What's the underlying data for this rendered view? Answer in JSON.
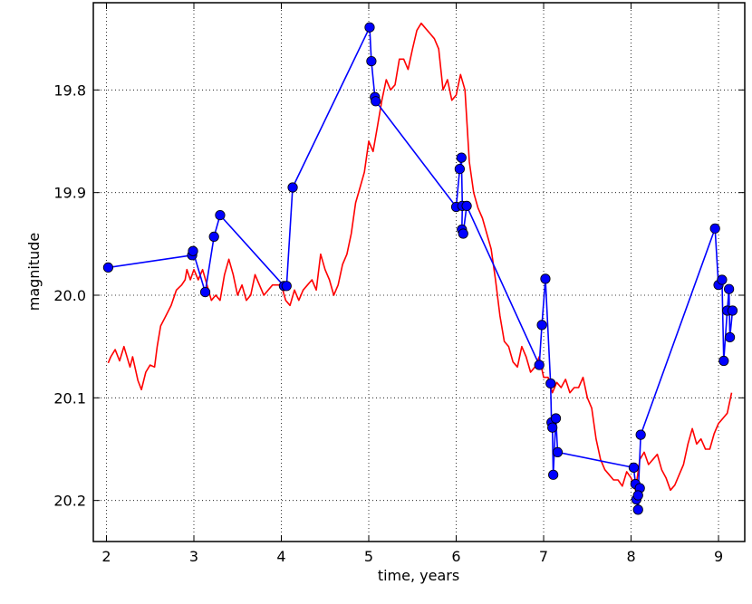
{
  "chart_data": {
    "type": "line",
    "xlabel": "time, years",
    "ylabel": "magnitude",
    "xlim": [
      1.85,
      9.3
    ],
    "ylim": [
      20.24,
      19.715
    ],
    "y_inverted": true,
    "grid": true,
    "grid_style": "dotted",
    "x_ticks": [
      2,
      3,
      4,
      5,
      6,
      7,
      8,
      9
    ],
    "x_tick_labels": [
      "2",
      "3",
      "4",
      "5",
      "6",
      "7",
      "8",
      "9"
    ],
    "y_ticks": [
      19.8,
      19.9,
      20.0,
      20.1,
      20.2
    ],
    "y_tick_labels": [
      "19.8",
      "19.9",
      "20.0",
      "20.1",
      "20.2"
    ],
    "series": [
      {
        "color": "#ff0000",
        "marker": "none",
        "x": [
          2.02,
          2.05,
          2.1,
          2.15,
          2.2,
          2.27,
          2.3,
          2.36,
          2.4,
          2.45,
          2.5,
          2.55,
          2.58,
          2.62,
          2.68,
          2.74,
          2.8,
          2.86,
          2.9,
          2.92,
          2.96,
          3.0,
          3.05,
          3.1,
          3.15,
          3.2,
          3.25,
          3.3,
          3.35,
          3.4,
          3.45,
          3.5,
          3.55,
          3.6,
          3.65,
          3.7,
          3.8,
          3.9,
          4.0,
          4.05,
          4.1,
          4.15,
          4.2,
          4.25,
          4.3,
          4.35,
          4.4,
          4.45,
          4.5,
          4.55,
          4.6,
          4.65,
          4.7,
          4.75,
          4.8,
          4.85,
          4.9,
          4.95,
          5.0,
          5.05,
          5.1,
          5.15,
          5.2,
          5.25,
          5.3,
          5.35,
          5.4,
          5.45,
          5.5,
          5.55,
          5.6,
          5.65,
          5.7,
          5.75,
          5.8,
          5.85,
          5.9,
          5.95,
          6.0,
          6.05,
          6.1,
          6.15,
          6.2,
          6.25,
          6.3,
          6.35,
          6.4,
          6.45,
          6.5,
          6.55,
          6.6,
          6.65,
          6.7,
          6.75,
          6.8,
          6.85,
          6.9,
          6.95,
          7.0,
          7.05,
          7.1,
          7.15,
          7.2,
          7.25,
          7.3,
          7.35,
          7.4,
          7.45,
          7.5,
          7.55,
          7.6,
          7.65,
          7.7,
          7.75,
          7.8,
          7.85,
          7.9,
          7.95,
          8.0,
          8.05,
          8.1,
          8.15,
          8.2,
          8.25,
          8.3,
          8.35,
          8.4,
          8.45,
          8.5,
          8.55,
          8.6,
          8.65,
          8.7,
          8.75,
          8.8,
          8.85,
          8.9,
          8.95,
          9.0,
          9.05,
          9.1,
          9.15
        ],
        "y": [
          20.066,
          20.06,
          20.053,
          20.064,
          20.05,
          20.07,
          20.06,
          20.083,
          20.092,
          20.075,
          20.068,
          20.07,
          20.05,
          20.03,
          20.02,
          20.01,
          19.995,
          19.99,
          19.985,
          19.975,
          19.985,
          19.975,
          19.985,
          19.975,
          19.99,
          20.005,
          20.0,
          20.005,
          19.98,
          19.965,
          19.98,
          20.0,
          19.99,
          20.005,
          20.0,
          19.98,
          20.0,
          19.99,
          19.99,
          20.005,
          20.01,
          19.995,
          20.005,
          19.995,
          19.99,
          19.985,
          19.995,
          19.96,
          19.975,
          19.985,
          20.0,
          19.99,
          19.97,
          19.96,
          19.94,
          19.91,
          19.895,
          19.88,
          19.85,
          19.86,
          19.835,
          19.81,
          19.79,
          19.8,
          19.795,
          19.77,
          19.77,
          19.78,
          19.76,
          19.742,
          19.735,
          19.74,
          19.745,
          19.75,
          19.76,
          19.8,
          19.79,
          19.81,
          19.805,
          19.785,
          19.8,
          19.87,
          19.9,
          19.915,
          19.925,
          19.94,
          19.955,
          19.985,
          20.02,
          20.045,
          20.05,
          20.065,
          20.07,
          20.05,
          20.06,
          20.075,
          20.07,
          20.06,
          20.08,
          20.08,
          20.095,
          20.085,
          20.09,
          20.082,
          20.095,
          20.09,
          20.09,
          20.08,
          20.1,
          20.11,
          20.14,
          20.16,
          20.17,
          20.175,
          20.18,
          20.18,
          20.186,
          20.172,
          20.178,
          20.19,
          20.16,
          20.153,
          20.165,
          20.16,
          20.155,
          20.17,
          20.178,
          20.19,
          20.185,
          20.175,
          20.165,
          20.145,
          20.13,
          20.145,
          20.14,
          20.15,
          20.15,
          20.135,
          20.125,
          20.12,
          20.115,
          20.095
        ]
      },
      {
        "color": "#0000ff",
        "marker": "circle",
        "x": [
          2.02,
          2.98,
          2.99,
          3.13,
          3.23,
          3.3,
          4.03,
          4.06,
          4.13,
          5.01,
          5.03,
          5.07,
          5.08,
          6.0,
          6.04,
          6.06,
          6.07,
          6.065,
          6.08,
          6.12,
          6.95,
          6.98,
          7.02,
          7.08,
          7.09,
          7.1,
          7.11,
          7.14,
          7.16,
          8.03,
          8.05,
          8.06,
          8.08,
          8.1,
          8.08,
          8.11,
          8.96,
          9.0,
          9.04,
          9.06,
          9.1,
          9.12,
          9.13,
          9.16
        ],
        "y": [
          19.973,
          19.961,
          19.957,
          19.997,
          19.943,
          19.922,
          19.991,
          19.991,
          19.895,
          19.739,
          19.772,
          19.807,
          19.811,
          19.914,
          19.877,
          19.866,
          19.913,
          19.936,
          19.94,
          19.913,
          20.068,
          20.029,
          19.984,
          20.086,
          20.124,
          20.129,
          20.175,
          20.12,
          20.153,
          20.168,
          20.184,
          20.199,
          20.209,
          20.188,
          20.195,
          20.136,
          19.935,
          19.99,
          19.985,
          20.064,
          20.015,
          19.994,
          20.041,
          20.015
        ]
      }
    ]
  }
}
